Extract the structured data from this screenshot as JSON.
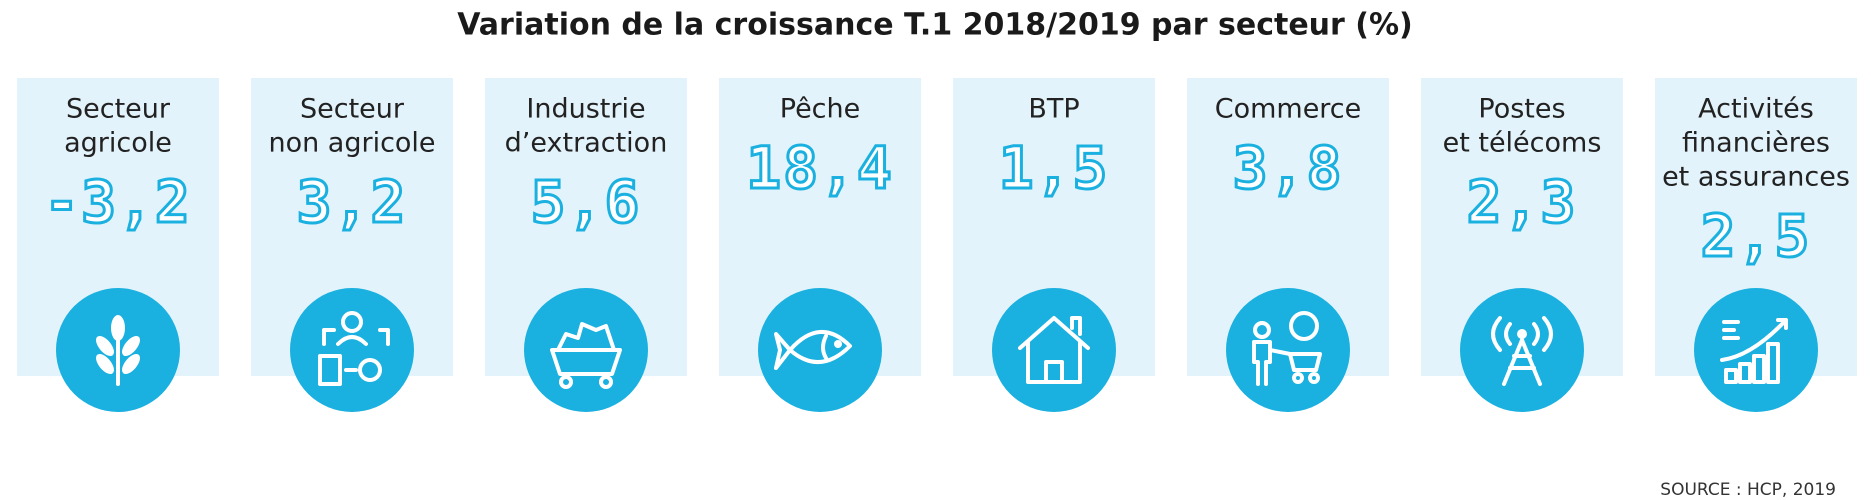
{
  "title": "Variation de la croissance T.1 2018/2019 par secteur (%)",
  "sectors": [
    {
      "label": [
        "Secteur",
        "agricole"
      ],
      "value": "-3,2"
    },
    {
      "label": [
        "Secteur",
        "non agricole"
      ],
      "value": "3,2"
    },
    {
      "label": [
        "Industrie",
        "d’extraction"
      ],
      "value": "5,6"
    },
    {
      "label": [
        "Pêche"
      ],
      "value": "18,4"
    },
    {
      "label": [
        "BTP"
      ],
      "value": "1,5"
    },
    {
      "label": [
        "Commerce"
      ],
      "value": "3,8"
    },
    {
      "label": [
        "Postes",
        "et télécoms"
      ],
      "value": "2,3"
    },
    {
      "label": [
        "Activités",
        "financières",
        "et assurances"
      ],
      "value": "2,5"
    }
  ],
  "source": "SOURCE : HCP, 2019"
}
